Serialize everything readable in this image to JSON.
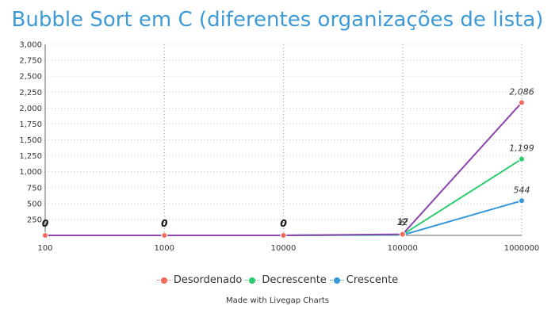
{
  "chart_data": {
    "type": "line",
    "title": "Bubble Sort em C (diferentes organizações de lista)",
    "xlabel": "",
    "ylabel": "",
    "categories": [
      "100",
      "1000",
      "10000",
      "100000",
      "1000000"
    ],
    "ylim": [
      0,
      3000
    ],
    "yticks": [
      250,
      500,
      750,
      1000,
      1250,
      1500,
      1750,
      2000,
      2250,
      2500,
      2750,
      3000
    ],
    "ytick_labels": [
      "250",
      "500",
      "750",
      "1,000",
      "1,250",
      "1,500",
      "1,750",
      "2,000",
      "2,250",
      "2,500",
      "2,750",
      "3,000"
    ],
    "grid": true,
    "legend_position": "bottom",
    "series": [
      {
        "name": "Desordenado",
        "values": [
          0,
          0,
          0,
          17,
          2086
        ],
        "labels": [
          "0",
          "0",
          "0",
          "17",
          "2,086"
        ],
        "color": "#8e44ad",
        "marker_color": "#f26a5a"
      },
      {
        "name": "Decrescente",
        "values": [
          0,
          0,
          0,
          12,
          1199
        ],
        "labels": [
          "0",
          "0",
          "0",
          "12",
          "1,199"
        ],
        "color": "#2ecc71",
        "marker_color": "#2ecc71"
      },
      {
        "name": "Crescente",
        "values": [
          0,
          0,
          0,
          6,
          544
        ],
        "labels": [
          "0",
          "0",
          "0",
          "6",
          "544"
        ],
        "color": "#3498db",
        "marker_color": "#3498db"
      }
    ],
    "credit": "Made with Livegap Charts"
  }
}
